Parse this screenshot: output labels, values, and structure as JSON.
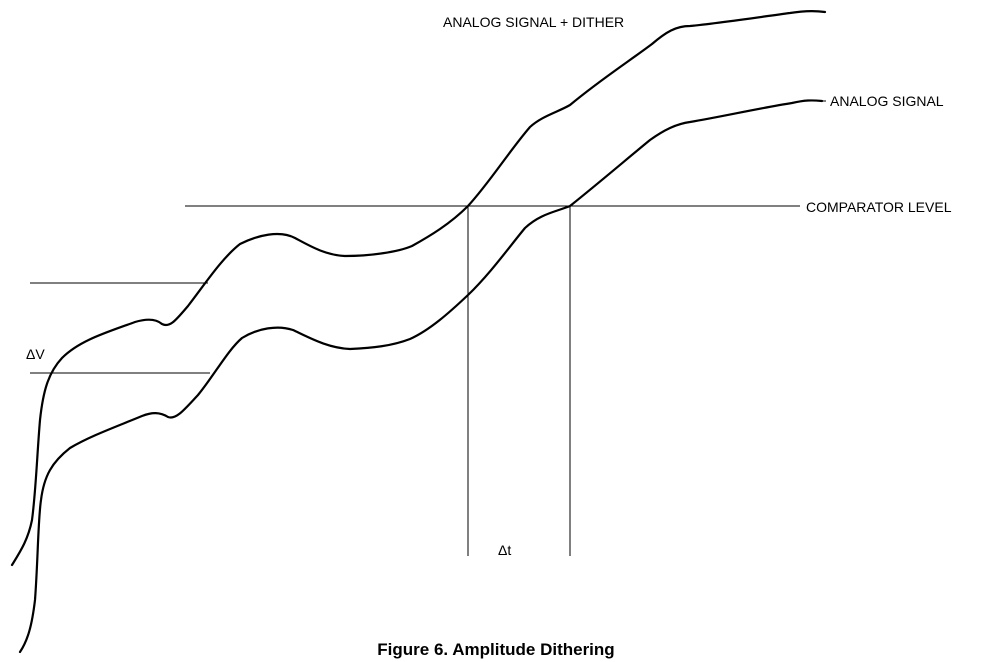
{
  "labels": {
    "signal_plus_dither": "ANALOG SIGNAL + DITHER",
    "signal": "ANALOG SIGNAL",
    "comparator_level": "COMPARATOR LEVEL",
    "delta_v": "ΔV",
    "delta_t": "Δt"
  },
  "caption": "Figure 6. Amplitude Dithering",
  "colors": {
    "line": "#000000",
    "background": "#ffffff"
  }
}
